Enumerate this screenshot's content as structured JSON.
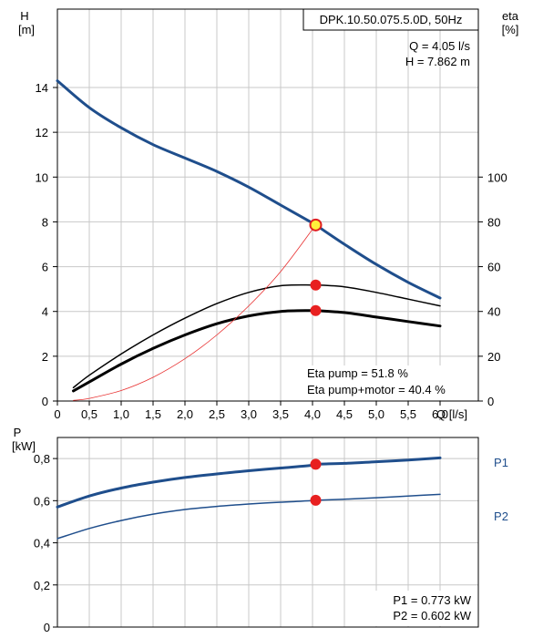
{
  "chart_data": [
    {
      "type": "line",
      "title": "DPK.10.50.075.5.0D, 50Hz",
      "operating_point": {
        "q_label": "Q = 4.05 l/s",
        "h_label": "H = 7.862 m",
        "q": 4.05,
        "h": 7.862
      },
      "xlabel": "Q [l/s]",
      "xlim": [
        0,
        6.6
      ],
      "x_ticks": [
        0,
        0.5,
        1,
        1.5,
        2,
        2.5,
        3,
        3.5,
        4,
        4.5,
        5,
        5.5,
        6
      ],
      "x_tick_labels": [
        "0",
        "0,5",
        "1,0",
        "1,5",
        "2,0",
        "2,5",
        "3,0",
        "3,5",
        "4,0",
        "4,5",
        "5,0",
        "5,5",
        "6,0"
      ],
      "left_axis": {
        "label_top": "H",
        "label_unit": "[m]",
        "ylim": [
          0,
          17.5
        ],
        "ticks": [
          0,
          2,
          4,
          6,
          8,
          10,
          12,
          14
        ],
        "tick_labels": [
          "0",
          "2",
          "4",
          "6",
          "8",
          "10",
          "12",
          "14"
        ]
      },
      "right_axis": {
        "label_top": "eta",
        "label_unit": "[%]",
        "ylim": [
          0,
          175
        ],
        "ticks": [
          0,
          20,
          40,
          60,
          80,
          100
        ],
        "tick_labels": [
          "0",
          "20",
          "40",
          "60",
          "80",
          "100"
        ]
      },
      "series": [
        {
          "axis": "left",
          "color": "#1f4e8c",
          "width": 3,
          "x": [
            0,
            0.5,
            1,
            1.5,
            2,
            2.5,
            3,
            3.5,
            4,
            4.05,
            4.5,
            5,
            5.5,
            6.0
          ],
          "y": [
            14.3,
            13.1,
            12.2,
            11.45,
            10.85,
            10.25,
            9.55,
            8.75,
            7.95,
            7.862,
            7.0,
            6.1,
            5.3,
            4.6
          ]
        },
        {
          "axis": "right",
          "color": "#000000",
          "width": 1.5,
          "x": [
            0.25,
            0.5,
            1,
            1.5,
            2,
            2.5,
            3,
            3.5,
            4,
            4.05,
            4.5,
            5,
            5.5,
            6.0
          ],
          "y": [
            6,
            11.5,
            21,
            29.5,
            37,
            43.5,
            48.5,
            51.5,
            51.8,
            51.8,
            51,
            48.5,
            45.5,
            42.5
          ]
        },
        {
          "axis": "right",
          "color": "#000000",
          "width": 3,
          "x": [
            0.25,
            0.5,
            1,
            1.5,
            2,
            2.5,
            3,
            3.5,
            4,
            4.05,
            4.5,
            5,
            5.5,
            6.0
          ],
          "y": [
            4.5,
            8.5,
            16.5,
            23.5,
            29.5,
            34.5,
            38,
            40,
            40.4,
            40.4,
            39.5,
            37.5,
            35.5,
            33.5
          ]
        },
        {
          "axis": "left",
          "color": "#e83030",
          "width": 0.8,
          "x": [
            0.25,
            0.5,
            1,
            1.5,
            2,
            2.5,
            3,
            3.5,
            4.05
          ],
          "y": [
            0.03,
            0.12,
            0.47,
            1.06,
            1.89,
            2.95,
            4.25,
            5.78,
            7.862
          ]
        }
      ],
      "markers": [
        {
          "axis": "left",
          "x": 4.05,
          "y": 7.862,
          "fill": "#ffef3a",
          "stroke": "#e02020"
        },
        {
          "axis": "right",
          "x": 4.05,
          "y": 51.8,
          "fill": "#e82020",
          "stroke": "#e82020"
        },
        {
          "axis": "right",
          "x": 4.05,
          "y": 40.4,
          "fill": "#e82020",
          "stroke": "#e82020"
        }
      ],
      "info": {
        "eta_pump": "Eta pump = 51.8 %",
        "eta_pump_motor": "Eta pump+motor = 40.4 %"
      },
      "grid": true
    },
    {
      "type": "line",
      "xlim": [
        0,
        6.6
      ],
      "x_ticks": [
        0,
        0.5,
        1,
        1.5,
        2,
        2.5,
        3,
        3.5,
        4,
        4.5,
        5,
        5.5,
        6
      ],
      "left_axis": {
        "label_top": "P",
        "label_unit": "[kW]",
        "ylim": [
          0,
          0.9
        ],
        "ticks": [
          0,
          0.2,
          0.4,
          0.6,
          0.8
        ],
        "tick_labels": [
          "0",
          "0,2",
          "0,4",
          "0,6",
          "0,8"
        ]
      },
      "series": [
        {
          "name": "P1",
          "color": "#1f4e8c",
          "width": 3,
          "x": [
            0,
            0.5,
            1,
            1.5,
            2,
            2.5,
            3,
            3.5,
            4,
            4.05,
            4.5,
            5,
            5.5,
            6.0
          ],
          "y": [
            0.57,
            0.622,
            0.66,
            0.688,
            0.71,
            0.727,
            0.742,
            0.755,
            0.768,
            0.773,
            0.777,
            0.785,
            0.793,
            0.803
          ]
        },
        {
          "name": "P2",
          "color": "#1f4e8c",
          "width": 1.5,
          "x": [
            0,
            0.5,
            1,
            1.5,
            2,
            2.5,
            3,
            3.5,
            4,
            4.05,
            4.5,
            5,
            5.5,
            6.0
          ],
          "y": [
            0.42,
            0.468,
            0.506,
            0.536,
            0.558,
            0.573,
            0.584,
            0.593,
            0.6,
            0.602,
            0.607,
            0.614,
            0.622,
            0.63
          ]
        }
      ],
      "markers": [
        {
          "x": 4.05,
          "y": 0.773,
          "fill": "#e82020",
          "stroke": "#e82020"
        },
        {
          "x": 4.05,
          "y": 0.602,
          "fill": "#e82020",
          "stroke": "#e82020"
        }
      ],
      "info": {
        "p1": "P1 = 0.773 kW",
        "p2": "P2 = 0.602 kW"
      },
      "series_label_color": "#1f4e8c",
      "grid": true
    }
  ]
}
